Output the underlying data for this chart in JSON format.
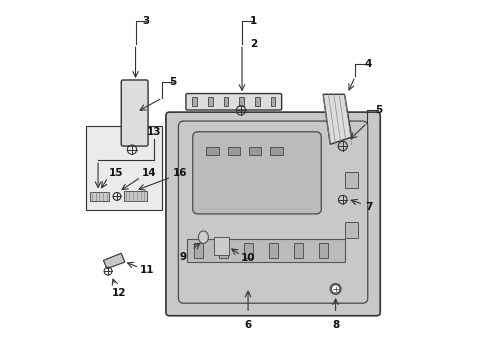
{
  "background_color": "#ffffff",
  "line_color": "#333333",
  "fill_light": "#dddddd",
  "fill_mid": "#c8c8c8",
  "fill_dark": "#aaaaaa",
  "label_color": "#111111",
  "fs": 7.5
}
